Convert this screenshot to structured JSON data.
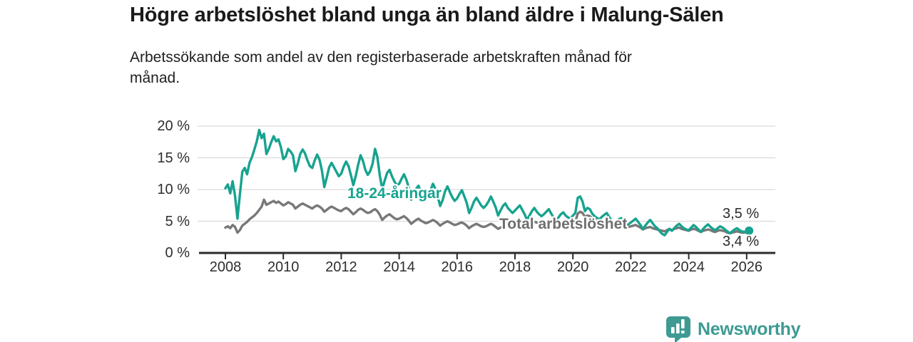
{
  "header": {
    "title": "Högre arbetslöshet bland unga än bland äldre i Malung-Sälen",
    "subtitle": "Arbetssökande som andel av den registerbaserade arbetskraften månad för månad."
  },
  "chart": {
    "y_axis": {
      "ticks": [
        "0 %",
        "5 %",
        "10 %",
        "15 %",
        "20 %"
      ],
      "values": [
        0,
        5,
        10,
        15,
        20
      ]
    },
    "x_axis": {
      "ticks": [
        "2008",
        "2010",
        "2012",
        "2014",
        "2016",
        "2018",
        "2020",
        "2022",
        "2024",
        "2026"
      ],
      "values": [
        2008,
        2010,
        2012,
        2014,
        2016,
        2018,
        2020,
        2022,
        2024,
        2026
      ]
    },
    "series_labels": {
      "youth": "18-24-åringar",
      "total": "Total arbetslöshet"
    },
    "end_labels": {
      "youth": "3,5 %",
      "total": "3,4 %"
    },
    "colors": {
      "youth": "#17a38f",
      "total": "#787878",
      "grid": "#dadada",
      "axis": "#2b2b2b"
    }
  },
  "chart_data": {
    "type": "line",
    "title": "Högre arbetslöshet bland unga än bland äldre i Malung-Sälen",
    "subtitle": "Arbetssökande som andel av den registerbaserade arbetskraften månad för månad.",
    "x_start": "2008-01",
    "x_step_months": 1,
    "x_tick_values": [
      2008,
      2010,
      2012,
      2014,
      2016,
      2018,
      2020,
      2022,
      2024,
      2026
    ],
    "y_tick_values": [
      0,
      5,
      10,
      15,
      20
    ],
    "ylim": [
      0,
      20
    ],
    "grid": true,
    "legend": "inline-labels",
    "series": [
      {
        "name": "18-24-åringar",
        "color": "#17a38f",
        "latest_label": "3,5 %",
        "latest_value": 3.5,
        "values": [
          10.2,
          10.8,
          9.4,
          11.3,
          9.0,
          5.4,
          9.2,
          12.8,
          13.4,
          12.4,
          14.2,
          15.1,
          16.3,
          17.6,
          19.4,
          18.1,
          18.8,
          15.6,
          16.4,
          17.5,
          18.4,
          17.6,
          17.9,
          16.7,
          14.8,
          15.2,
          16.4,
          16.0,
          15.4,
          12.9,
          14.1,
          15.6,
          16.3,
          15.7,
          14.6,
          13.7,
          13.4,
          14.6,
          15.5,
          14.7,
          13.0,
          10.4,
          11.9,
          13.5,
          14.2,
          13.5,
          12.8,
          12.1,
          12.5,
          13.6,
          14.4,
          13.7,
          12.3,
          10.7,
          12.1,
          13.9,
          15.4,
          14.5,
          13.1,
          12.3,
          12.9,
          14.1,
          16.4,
          15.1,
          12.2,
          10.1,
          11.4,
          12.6,
          13.1,
          12.1,
          11.3,
          10.7,
          10.9,
          11.7,
          12.4,
          11.5,
          10.3,
          8.4,
          9.3,
          10.1,
          10.6,
          9.7,
          9.2,
          8.7,
          9.1,
          9.9,
          10.9,
          10.1,
          8.9,
          7.4,
          8.3,
          9.7,
          10.5,
          9.6,
          8.8,
          8.2,
          8.6,
          9.3,
          9.9,
          8.9,
          7.9,
          6.3,
          7.1,
          8.1,
          8.7,
          8.1,
          7.5,
          7.1,
          7.5,
          8.1,
          8.9,
          8.1,
          7.2,
          5.9,
          6.7,
          7.4,
          7.8,
          7.1,
          6.7,
          6.3,
          6.7,
          7.1,
          7.5,
          6.8,
          6.1,
          5.2,
          5.9,
          6.6,
          7.1,
          6.5,
          6.1,
          5.8,
          6.1,
          6.5,
          6.9,
          6.2,
          5.6,
          4.9,
          5.6,
          6.1,
          6.4,
          5.9,
          5.6,
          5.4,
          5.9,
          6.3,
          8.7,
          8.9,
          8.1,
          6.6,
          7.1,
          6.9,
          6.2,
          5.8,
          5.5,
          5.3,
          5.7,
          6.0,
          6.3,
          5.7,
          5.1,
          4.4,
          4.9,
          5.3,
          5.5,
          5.0,
          4.7,
          4.5,
          4.8,
          5.1,
          5.4,
          4.9,
          4.4,
          3.8,
          4.3,
          4.8,
          5.2,
          4.7,
          4.2,
          3.9,
          3.4,
          3.0,
          2.8,
          3.3,
          3.8,
          3.5,
          3.9,
          4.3,
          4.6,
          4.2,
          3.9,
          3.7,
          3.6,
          4.0,
          4.4,
          4.1,
          3.7,
          3.3,
          3.8,
          4.2,
          4.5,
          4.1,
          3.8,
          3.6,
          3.9,
          4.2,
          4.0,
          3.7,
          3.4,
          3.1,
          3.4,
          3.7,
          3.9,
          3.6,
          3.4,
          3.3,
          3.4,
          3.5
        ]
      },
      {
        "name": "Total arbetslöshet",
        "color": "#787878",
        "latest_label": "3,4 %",
        "latest_value": 3.4,
        "values": [
          4.0,
          4.2,
          3.9,
          4.4,
          4.1,
          3.2,
          3.6,
          4.3,
          4.6,
          4.9,
          5.3,
          5.6,
          5.9,
          6.3,
          6.8,
          7.3,
          8.4,
          7.6,
          7.8,
          8.0,
          8.2,
          7.9,
          8.1,
          7.8,
          7.5,
          7.7,
          8.0,
          7.8,
          7.6,
          7.0,
          7.3,
          7.6,
          7.8,
          7.6,
          7.4,
          7.2,
          7.0,
          7.3,
          7.5,
          7.3,
          7.0,
          6.5,
          6.8,
          7.1,
          7.3,
          7.1,
          6.9,
          6.7,
          6.6,
          6.9,
          7.1,
          6.9,
          6.5,
          6.1,
          6.4,
          6.8,
          7.0,
          6.8,
          6.5,
          6.3,
          6.4,
          6.7,
          6.9,
          6.6,
          6.0,
          5.2,
          5.6,
          5.9,
          6.1,
          5.8,
          5.5,
          5.3,
          5.4,
          5.6,
          5.8,
          5.5,
          5.1,
          4.6,
          4.9,
          5.2,
          5.4,
          5.1,
          4.9,
          4.7,
          4.8,
          5.0,
          5.2,
          5.0,
          4.7,
          4.3,
          4.6,
          4.8,
          5.0,
          4.8,
          4.6,
          4.4,
          4.5,
          4.7,
          4.8,
          4.6,
          4.3,
          3.9,
          4.2,
          4.4,
          4.6,
          4.4,
          4.2,
          4.1,
          4.2,
          4.4,
          4.6,
          4.4,
          4.1,
          3.8,
          4.0,
          4.2,
          4.4,
          4.3,
          4.4,
          4.5,
          4.6,
          4.8,
          5.0,
          4.8,
          4.6,
          4.3,
          4.5,
          4.7,
          4.9,
          4.8,
          4.7,
          4.6,
          4.7,
          4.9,
          5.0,
          4.8,
          4.6,
          4.3,
          4.5,
          4.7,
          4.9,
          4.7,
          4.6,
          4.5,
          4.7,
          4.9,
          6.2,
          6.5,
          6.3,
          5.7,
          5.9,
          5.8,
          5.5,
          5.2,
          5.0,
          4.8,
          4.9,
          5.1,
          5.2,
          4.9,
          4.6,
          4.2,
          4.4,
          4.6,
          4.7,
          4.5,
          4.3,
          4.1,
          4.2,
          4.3,
          4.4,
          4.2,
          4.0,
          3.7,
          3.9,
          4.0,
          4.1,
          3.9,
          3.8,
          3.7,
          3.6,
          3.5,
          3.4,
          3.6,
          3.8,
          3.6,
          3.8,
          3.9,
          4.0,
          3.8,
          3.7,
          3.6,
          3.5,
          3.7,
          3.8,
          3.7,
          3.5,
          3.3,
          3.5,
          3.6,
          3.7,
          3.6,
          3.4,
          3.3,
          3.5,
          3.6,
          3.5,
          3.4,
          3.2,
          3.1,
          3.2,
          3.3,
          3.4,
          3.3,
          3.2,
          3.2,
          3.3,
          3.4
        ]
      }
    ]
  },
  "footer": {
    "brand": "Newsworthy",
    "brand_color": "#3e9a93",
    "logo_icon": "bar-chart-speech-bubble"
  }
}
